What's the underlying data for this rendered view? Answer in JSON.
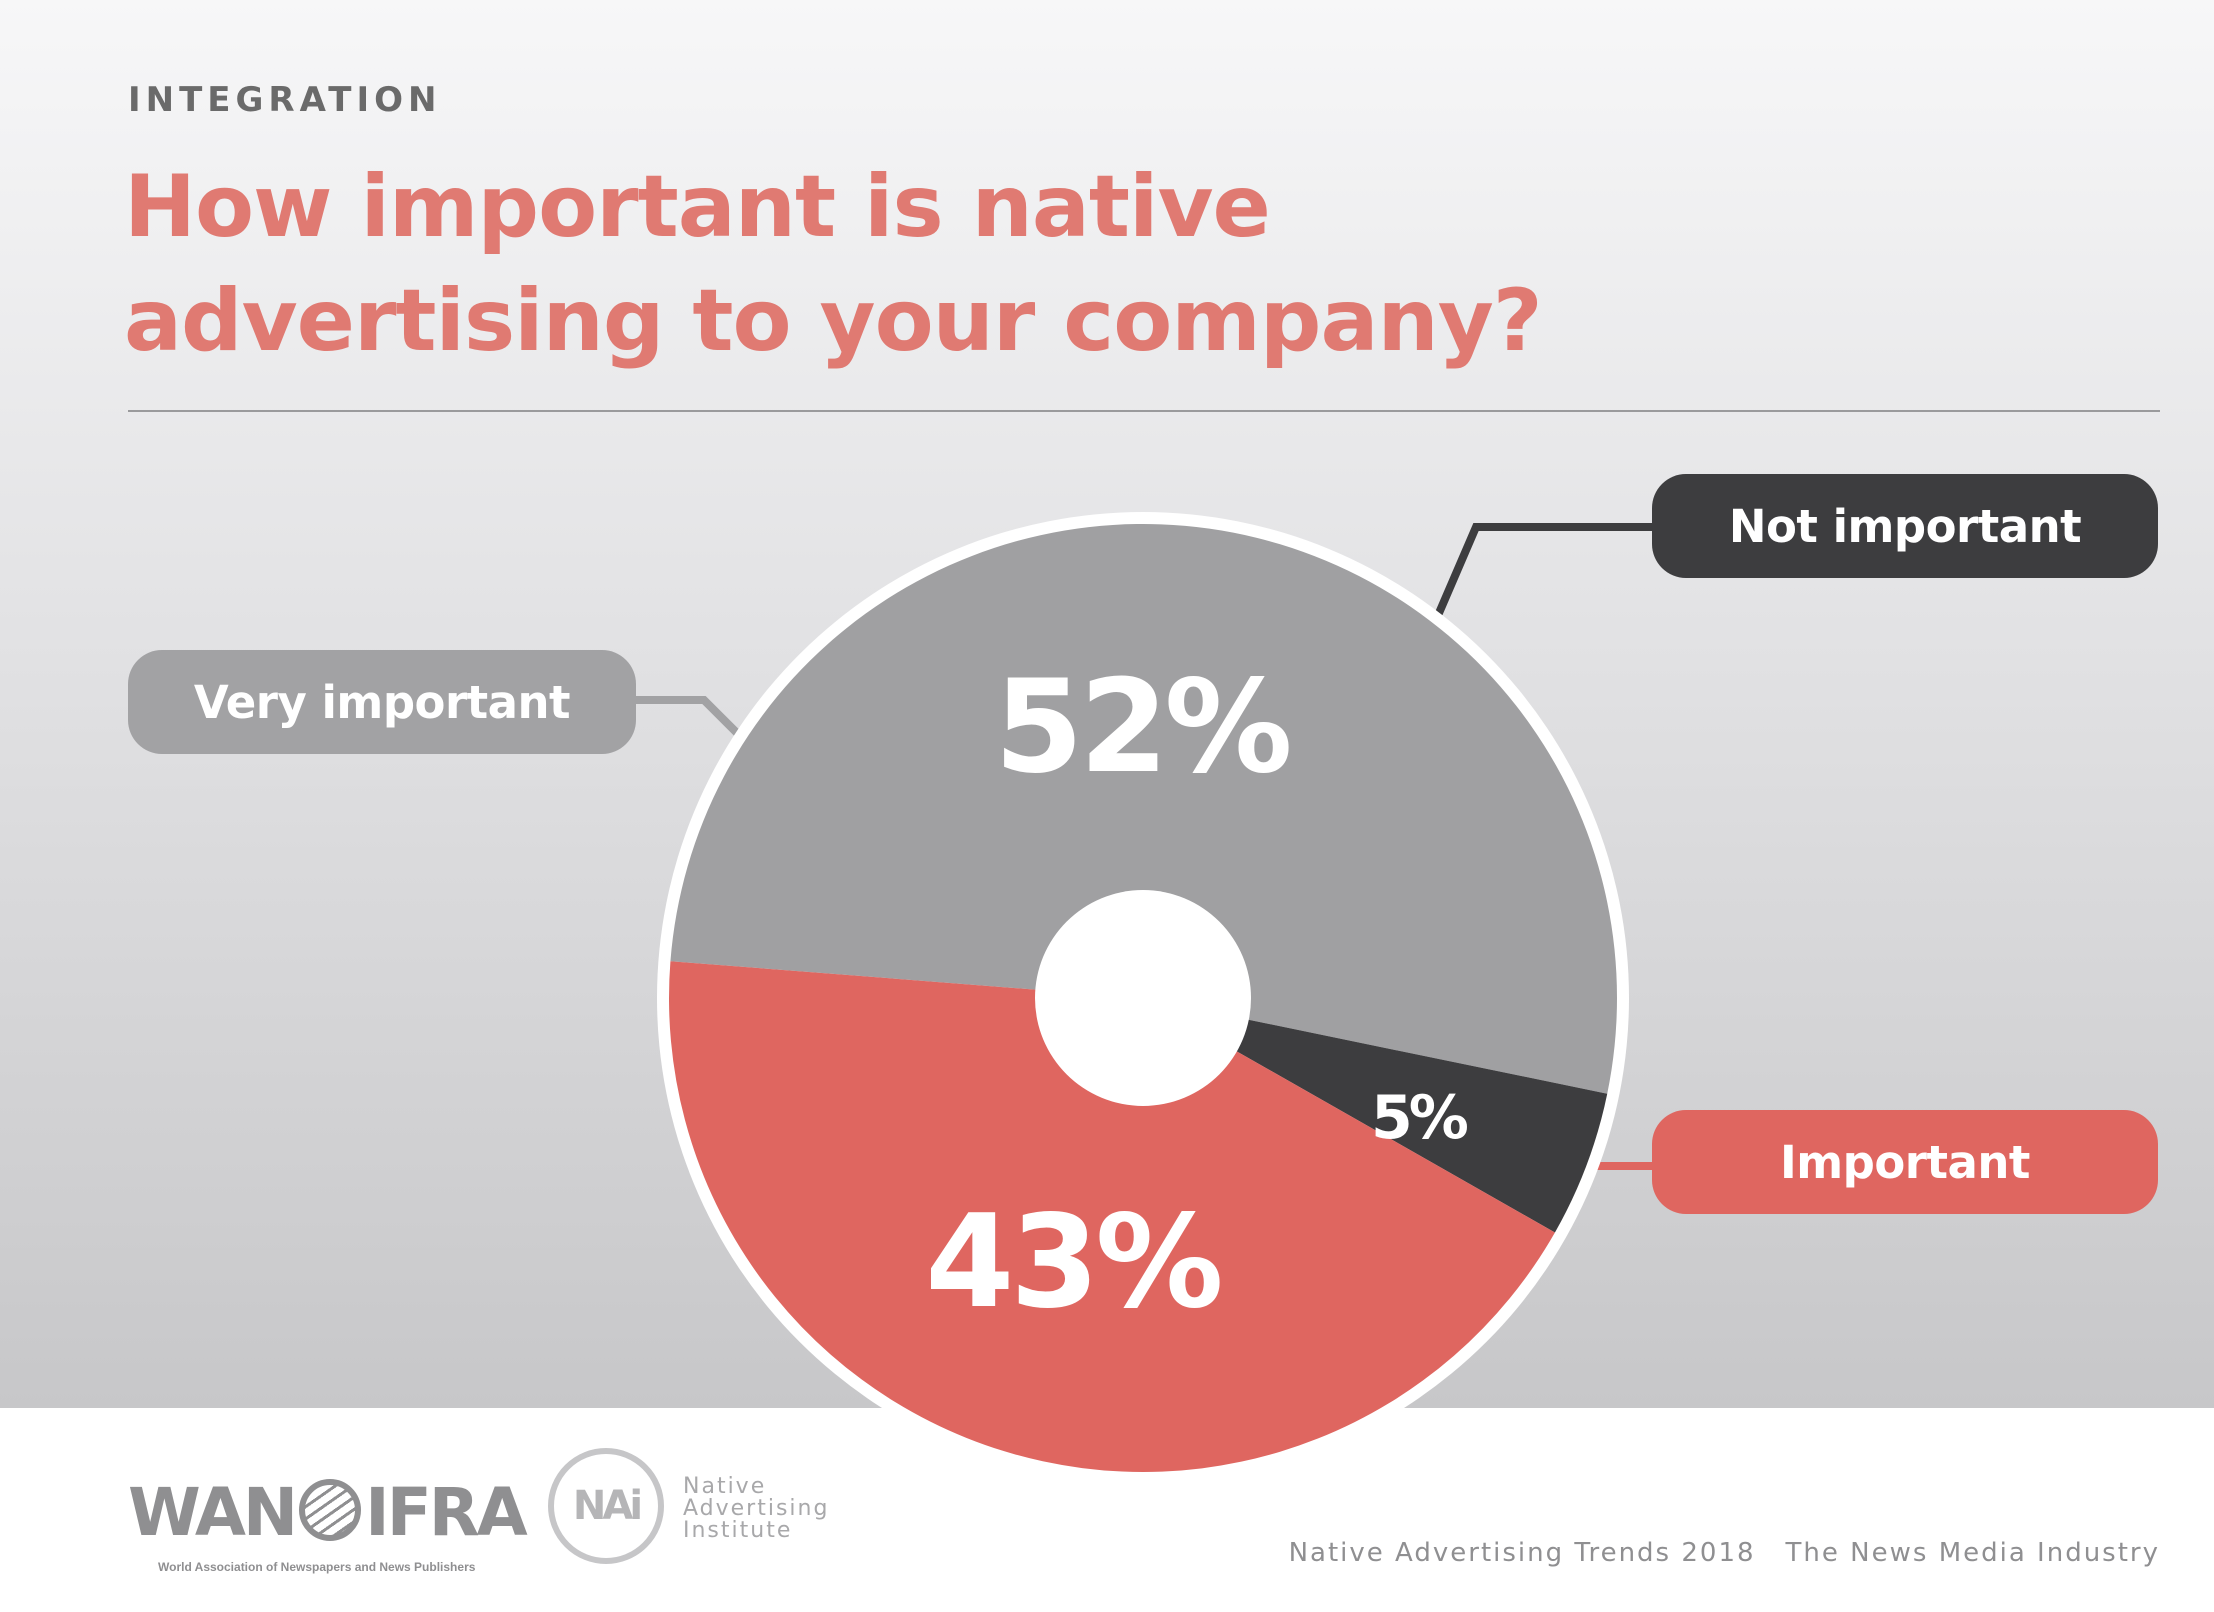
{
  "header": {
    "kicker": "INTEGRATION",
    "title": "How important is native advertising to your company?"
  },
  "chart_data": {
    "type": "pie",
    "categories": [
      "Very important",
      "Not important",
      "Important"
    ],
    "values": [
      52,
      5,
      43
    ],
    "value_labels": [
      "52%",
      "5%",
      "43%"
    ],
    "colors": [
      "#a0a0a2",
      "#3d3d3f",
      "#df6660"
    ],
    "center_hole": true,
    "legend_placement": "callout labels around the pie"
  },
  "footer": {
    "wan_logo": "WAN IFRA",
    "wan_sub": "World Association of Newspapers and News Publishers",
    "nai_mark": "NAi",
    "nai_lines": [
      "Native",
      "Advertising",
      "Institute"
    ],
    "source": "Native Advertising Trends 2018",
    "publisher": "The News Media Industry"
  }
}
